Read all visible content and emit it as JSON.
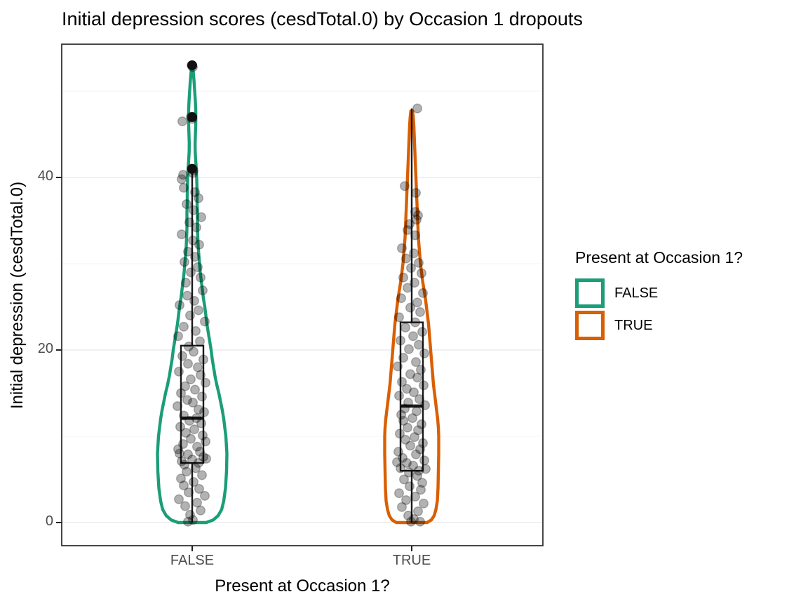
{
  "title": "Initial depression scores (cesdTotal.0) by Occasion 1 dropouts",
  "axes": {
    "x": {
      "label": "Present at Occasion 1?",
      "tick_labels": [
        "FALSE",
        "TRUE"
      ]
    },
    "y": {
      "label": "Initial depression (cesdTotal.0)",
      "tick_labels": [
        "0",
        "20",
        "40"
      ],
      "tick_values": [
        0,
        20,
        40
      ],
      "minor_tick_values": [
        10,
        30,
        50
      ]
    }
  },
  "legend": {
    "title": "Present at Occasion 1?",
    "items": [
      {
        "label": "FALSE",
        "color": "#1B9E77"
      },
      {
        "label": "TRUE",
        "color": "#D95F02"
      }
    ]
  },
  "colors": {
    "panel_border": "#333333",
    "grid_major": "#EBEBEB",
    "grid_minor": "#F5F5F5",
    "tick_mark": "#222222",
    "tick_label": "#4D4D4D",
    "box_stroke": "#1A1A1A",
    "outlier": "#111111",
    "point_fill": "rgba(0,0,0,0.30)",
    "point_stroke": "rgba(0,0,0,0.25)"
  },
  "chart_data": {
    "type": "violin+boxplot+jitter",
    "categories": [
      "FALSE",
      "TRUE"
    ],
    "y_range_shown": [
      0,
      55
    ],
    "series": [
      {
        "name": "FALSE",
        "color": "#1B9E77",
        "box": {
          "q1": 6.9,
          "median": 12.1,
          "q3": 20.5,
          "whisker_low": 0,
          "whisker_high": 40.5
        },
        "outliers": [
          41,
          47,
          53
        ],
        "violin_profile": [
          [
            0,
            20
          ],
          [
            0.3,
            30
          ],
          [
            0.8,
            37
          ],
          [
            1.5,
            42
          ],
          [
            2.5,
            45
          ],
          [
            4,
            47.5
          ],
          [
            6,
            49
          ],
          [
            8,
            49.5
          ],
          [
            10,
            48
          ],
          [
            12,
            45
          ],
          [
            13,
            43
          ],
          [
            14,
            40.5
          ],
          [
            15,
            38
          ],
          [
            16,
            35
          ],
          [
            17,
            32.5
          ],
          [
            18,
            30.5
          ],
          [
            19,
            28.5
          ],
          [
            20,
            27
          ],
          [
            21,
            25
          ],
          [
            22,
            23
          ],
          [
            23,
            21
          ],
          [
            24,
            19.5
          ],
          [
            25,
            18
          ],
          [
            26,
            16
          ],
          [
            27,
            14.5
          ],
          [
            28,
            13
          ],
          [
            29,
            11.5
          ],
          [
            30,
            10.5
          ],
          [
            31,
            9.5
          ],
          [
            32,
            8.5
          ],
          [
            33,
            8
          ],
          [
            34,
            7.5
          ],
          [
            35,
            7.5
          ],
          [
            36,
            7.5
          ],
          [
            37,
            7
          ],
          [
            38,
            7
          ],
          [
            39,
            6.8
          ],
          [
            40,
            6.4
          ],
          [
            41,
            5.8
          ],
          [
            42,
            5
          ],
          [
            43,
            4.3
          ],
          [
            44,
            4.2
          ],
          [
            45,
            4.6
          ],
          [
            46,
            5
          ],
          [
            47,
            5.2
          ],
          [
            48,
            5
          ],
          [
            49,
            4.4
          ],
          [
            50,
            3.6
          ],
          [
            51,
            2.8
          ],
          [
            52,
            1.8
          ],
          [
            52.8,
            0.8
          ]
        ],
        "jitter_points": [
          [
            -1,
            53
          ],
          [
            1,
            52.8
          ],
          [
            -2,
            47
          ],
          [
            0,
            46.8
          ],
          [
            -14,
            46.5
          ],
          [
            -1,
            41
          ],
          [
            2,
            40.8
          ],
          [
            1,
            40.5
          ],
          [
            -13,
            40.3
          ],
          [
            -15,
            39.8
          ],
          [
            -12,
            38.8
          ],
          [
            4,
            38.3
          ],
          [
            9,
            37.6
          ],
          [
            -8,
            36.9
          ],
          [
            2,
            36.2
          ],
          [
            13,
            35.4
          ],
          [
            -4,
            34.8
          ],
          [
            6,
            34.2
          ],
          [
            -15,
            33.4
          ],
          [
            1,
            32.7
          ],
          [
            10,
            32.2
          ],
          [
            -6,
            31.4
          ],
          [
            4,
            30.8
          ],
          [
            -11,
            30.2
          ],
          [
            8,
            29.6
          ],
          [
            -2,
            29
          ],
          [
            12,
            28.4
          ],
          [
            -9,
            27.8
          ],
          [
            15,
            26.9
          ],
          [
            -7,
            26.3
          ],
          [
            3,
            25.7
          ],
          [
            -18,
            25.2
          ],
          [
            9,
            24.6
          ],
          [
            -3,
            24
          ],
          [
            18,
            23.3
          ],
          [
            -12,
            22.7
          ],
          [
            5,
            22.2
          ],
          [
            -20,
            21.6
          ],
          [
            11,
            21
          ],
          [
            -5,
            20.4
          ],
          [
            2,
            19.8
          ],
          [
            -14,
            19.3
          ],
          [
            16,
            18.9
          ],
          [
            -6,
            18.4
          ],
          [
            8,
            18
          ],
          [
            -19,
            17.5
          ],
          [
            12,
            17.1
          ],
          [
            -2,
            16.6
          ],
          [
            19,
            16.2
          ],
          [
            -10,
            15.8
          ],
          [
            4,
            15.4
          ],
          [
            -16,
            15
          ],
          [
            14,
            14.6
          ],
          [
            -7,
            14.2
          ],
          [
            1,
            13.9
          ],
          [
            -21,
            13.5
          ],
          [
            9,
            13.1
          ],
          [
            17,
            12.8
          ],
          [
            -12,
            12.4
          ],
          [
            6,
            12.1
          ],
          [
            -4,
            11.8
          ],
          [
            13,
            11.5
          ],
          [
            -17,
            11.1
          ],
          [
            3,
            10.8
          ],
          [
            -9,
            10.4
          ],
          [
            15,
            10.1
          ],
          [
            -2,
            9.7
          ],
          [
            19,
            9.4
          ],
          [
            -13,
            9.1
          ],
          [
            7,
            8.8
          ],
          [
            -20,
            8.5
          ],
          [
            11,
            8.2
          ],
          [
            -6,
            7.9
          ],
          [
            16,
            7.6
          ],
          [
            0,
            7.3
          ],
          [
            -15,
            7.1
          ],
          [
            9,
            6.9
          ],
          [
            -11,
            6.7
          ],
          [
            20,
            7.4
          ],
          [
            -18,
            8
          ],
          [
            5,
            6.3
          ],
          [
            -8,
            5.9
          ],
          [
            14,
            5.5
          ],
          [
            -16,
            5.1
          ],
          [
            2,
            4.7
          ],
          [
            -12,
            4.3
          ],
          [
            10,
            3.9
          ],
          [
            -5,
            3.5
          ],
          [
            18,
            3.1
          ],
          [
            -19,
            2.7
          ],
          [
            7,
            2.3
          ],
          [
            -10,
            1.9
          ],
          [
            12,
            1.4
          ],
          [
            -3,
            0.9
          ],
          [
            1,
            0.3
          ],
          [
            -6,
            0.1
          ]
        ]
      },
      {
        "name": "TRUE",
        "color": "#D95F02",
        "box": {
          "q1": 6.0,
          "median": 13.5,
          "q3": 23.2,
          "whisker_low": 0,
          "whisker_high": 48
        },
        "outliers": [],
        "violin_profile": [
          [
            0,
            22
          ],
          [
            0.3,
            28
          ],
          [
            0.8,
            32
          ],
          [
            1.5,
            34.5
          ],
          [
            2.5,
            36.5
          ],
          [
            4,
            37.5
          ],
          [
            6,
            38
          ],
          [
            8,
            38.5
          ],
          [
            10,
            38.5
          ],
          [
            11,
            38
          ],
          [
            12,
            37
          ],
          [
            13,
            35.5
          ],
          [
            14,
            34
          ],
          [
            15,
            32.5
          ],
          [
            16,
            31
          ],
          [
            17,
            30
          ],
          [
            18,
            29
          ],
          [
            19,
            28
          ],
          [
            20,
            27
          ],
          [
            21,
            26
          ],
          [
            22,
            25
          ],
          [
            23,
            24
          ],
          [
            24,
            22.5
          ],
          [
            25,
            21
          ],
          [
            26,
            19.5
          ],
          [
            27,
            17.5
          ],
          [
            28,
            15.5
          ],
          [
            29,
            14
          ],
          [
            30,
            12.5
          ],
          [
            31,
            11.5
          ],
          [
            32,
            10.5
          ],
          [
            33,
            9.5
          ],
          [
            34,
            9
          ],
          [
            35,
            8.5
          ],
          [
            36,
            8
          ],
          [
            37,
            7.5
          ],
          [
            38,
            7
          ],
          [
            39,
            6.5
          ],
          [
            40,
            6
          ],
          [
            41,
            5.5
          ],
          [
            42,
            5
          ],
          [
            43,
            4.5
          ],
          [
            44,
            4
          ],
          [
            45,
            3.5
          ],
          [
            46,
            3
          ],
          [
            47,
            2.2
          ],
          [
            47.7,
            1.2
          ]
        ],
        "jitter_points": [
          [
            8,
            48
          ],
          [
            -10,
            39
          ],
          [
            6,
            38.2
          ],
          [
            5,
            36
          ],
          [
            9,
            35.6
          ],
          [
            7,
            35.1
          ],
          [
            -3,
            34.6
          ],
          [
            -6,
            33.9
          ],
          [
            5,
            33.3
          ],
          [
            -14,
            31.8
          ],
          [
            3,
            31.2
          ],
          [
            -8,
            30.6
          ],
          [
            10,
            30.1
          ],
          [
            -1,
            29.5
          ],
          [
            14,
            28.9
          ],
          [
            -12,
            28.4
          ],
          [
            4,
            27.8
          ],
          [
            -6,
            27.2
          ],
          [
            16,
            26.6
          ],
          [
            -15,
            26
          ],
          [
            8,
            25.5
          ],
          [
            -2,
            24.9
          ],
          [
            12,
            24.4
          ],
          [
            -18,
            23.8
          ],
          [
            5,
            23.2
          ],
          [
            -9,
            22.6
          ],
          [
            15,
            22.1
          ],
          [
            2,
            21.6
          ],
          [
            -16,
            21.1
          ],
          [
            10,
            20.6
          ],
          [
            -4,
            20.1
          ],
          [
            18,
            19.6
          ],
          [
            -12,
            19.1
          ],
          [
            6,
            18.6
          ],
          [
            -20,
            18.1
          ],
          [
            13,
            17.7
          ],
          [
            -2,
            17.2
          ],
          [
            8,
            16.8
          ],
          [
            -14,
            16.3
          ],
          [
            17,
            15.9
          ],
          [
            -7,
            15.5
          ],
          [
            3,
            15.1
          ],
          [
            -18,
            14.7
          ],
          [
            11,
            14.3
          ],
          [
            -5,
            13.9
          ],
          [
            19,
            13.6
          ],
          [
            -10,
            13.2
          ],
          [
            7,
            12.9
          ],
          [
            -15,
            12.5
          ],
          [
            1,
            12.1
          ],
          [
            -12,
            11.8
          ],
          [
            14,
            11.4
          ],
          [
            -6,
            11
          ],
          [
            9,
            10.7
          ],
          [
            -17,
            10.3
          ],
          [
            4,
            9.9
          ],
          [
            -9,
            9.6
          ],
          [
            16,
            9.2
          ],
          [
            -2,
            8.9
          ],
          [
            12,
            8.5
          ],
          [
            -19,
            8.2
          ],
          [
            6,
            7.9
          ],
          [
            -13,
            7.5
          ],
          [
            18,
            7.2
          ],
          [
            -7,
            6.9
          ],
          [
            2,
            6.6
          ],
          [
            -16,
            6.3
          ],
          [
            10,
            6
          ],
          [
            -4,
            5.8
          ],
          [
            20,
            6.2
          ],
          [
            -21,
            7
          ],
          [
            8,
            5.4
          ],
          [
            -11,
            5
          ],
          [
            15,
            4.6
          ],
          [
            -3,
            4.2
          ],
          [
            13,
            3.8
          ],
          [
            -18,
            3.4
          ],
          [
            5,
            3
          ],
          [
            -8,
            2.6
          ],
          [
            17,
            2.2
          ],
          [
            -14,
            1.8
          ],
          [
            9,
            1.3
          ],
          [
            -5,
            0.8
          ],
          [
            3,
            0.4
          ],
          [
            -1,
            0.1
          ],
          [
            12,
            0.1
          ]
        ]
      }
    ]
  }
}
